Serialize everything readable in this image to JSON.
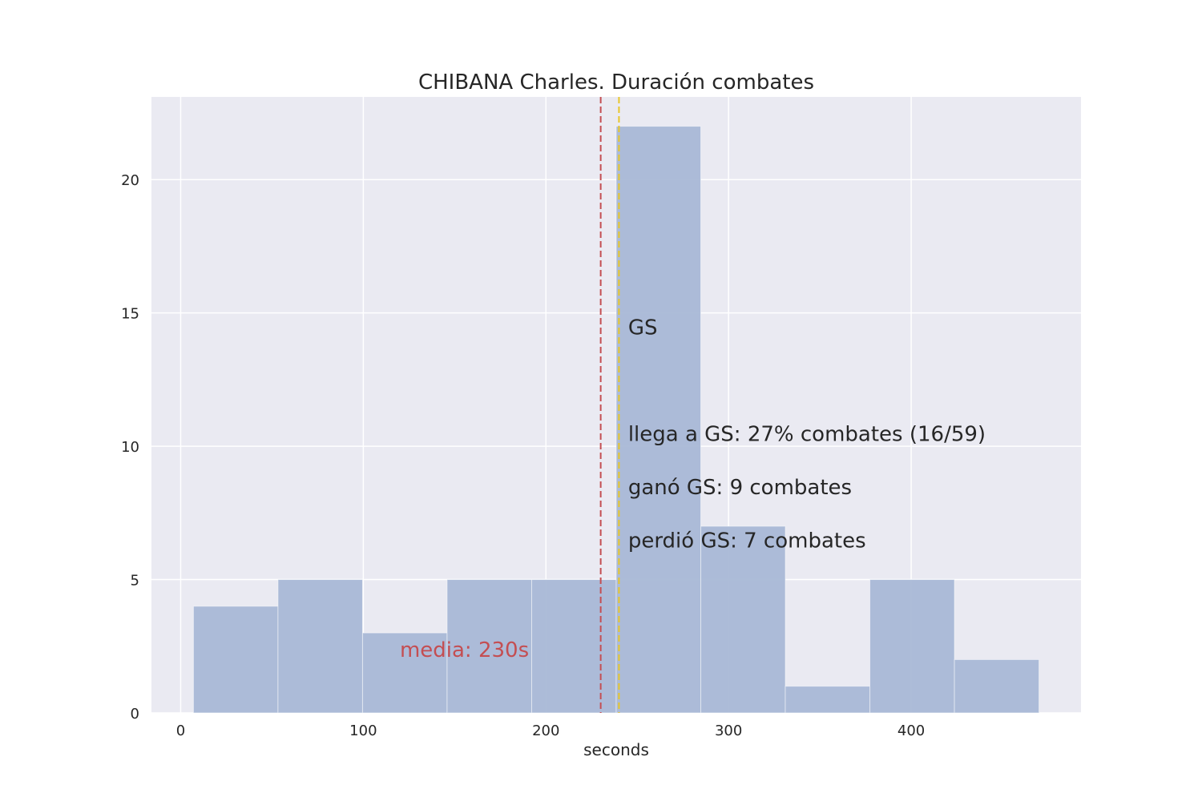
{
  "chart_data": {
    "type": "bar",
    "title": "CHIBANA Charles. Duración combates",
    "xlabel": "seconds",
    "ylabel": "",
    "xlim": [
      -16,
      493
    ],
    "ylim": [
      0,
      23.1
    ],
    "grid": true,
    "bins": [
      {
        "x0": 7,
        "x1": 53.3,
        "count": 4
      },
      {
        "x0": 53.3,
        "x1": 99.6,
        "count": 5
      },
      {
        "x0": 99.6,
        "x1": 145.9,
        "count": 3
      },
      {
        "x0": 145.9,
        "x1": 192.2,
        "count": 5
      },
      {
        "x0": 192.2,
        "x1": 238.5,
        "count": 5
      },
      {
        "x0": 238.5,
        "x1": 284.8,
        "count": 22
      },
      {
        "x0": 284.8,
        "x1": 331.1,
        "count": 7
      },
      {
        "x0": 331.1,
        "x1": 377.4,
        "count": 1
      },
      {
        "x0": 377.4,
        "x1": 423.7,
        "count": 5
      },
      {
        "x0": 423.7,
        "x1": 470,
        "count": 2
      }
    ],
    "x_ticks": [
      0,
      100,
      200,
      300,
      400
    ],
    "y_ticks": [
      0,
      5,
      10,
      15,
      20
    ],
    "mean_line": {
      "x": 230,
      "color": "#c44e52"
    },
    "gs_line": {
      "x": 240,
      "color": "#e8c62a"
    },
    "colors": {
      "bar": "#a9b8d6",
      "background": "#eaeaf2",
      "grid": "#ffffff"
    },
    "annotations": [
      {
        "id": "gs",
        "text": "GS",
        "x": 245,
        "y": 14.2,
        "kind": "normal"
      },
      {
        "id": "reach-gs",
        "text": "llega a GS: 27% combates (16/59)",
        "x": 245,
        "y": 10.2,
        "kind": "normal"
      },
      {
        "id": "won-gs",
        "text": "ganó GS: 9 combates",
        "x": 245,
        "y": 8.2,
        "kind": "normal"
      },
      {
        "id": "lost-gs",
        "text": "perdió GS: 7 combates",
        "x": 245,
        "y": 6.2,
        "kind": "normal"
      },
      {
        "id": "mean",
        "text": "media: 230s",
        "x": 120,
        "y": 2.1,
        "kind": "mean"
      }
    ]
  }
}
